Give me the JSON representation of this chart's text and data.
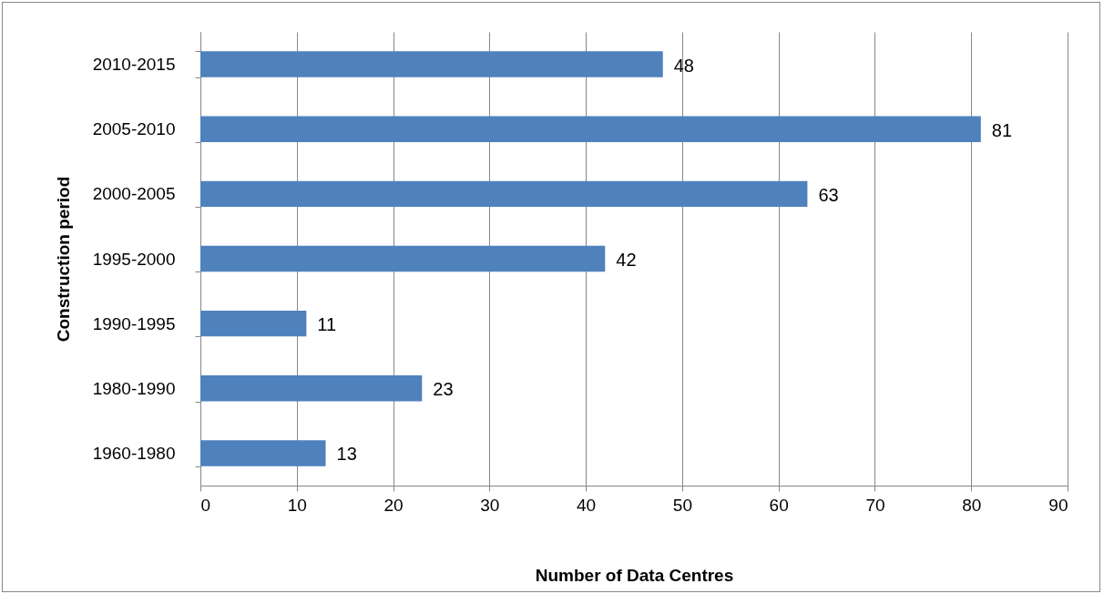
{
  "chart_data": {
    "type": "bar",
    "orientation": "horizontal",
    "xlabel": "Number of Data Centres",
    "ylabel": "Construction period",
    "categories": [
      "2010-2015",
      "2005-2010",
      "2000-2005",
      "1995-2000",
      "1990-1995",
      "1980-1990",
      "1960-1980"
    ],
    "values": [
      48,
      81,
      63,
      42,
      11,
      23,
      13
    ],
    "color": "#4f81bd",
    "xlim": [
      0,
      90
    ],
    "xticks": [
      0,
      10,
      20,
      30,
      40,
      50,
      60,
      70,
      80,
      90
    ],
    "grid": "x",
    "data_labels": true
  }
}
